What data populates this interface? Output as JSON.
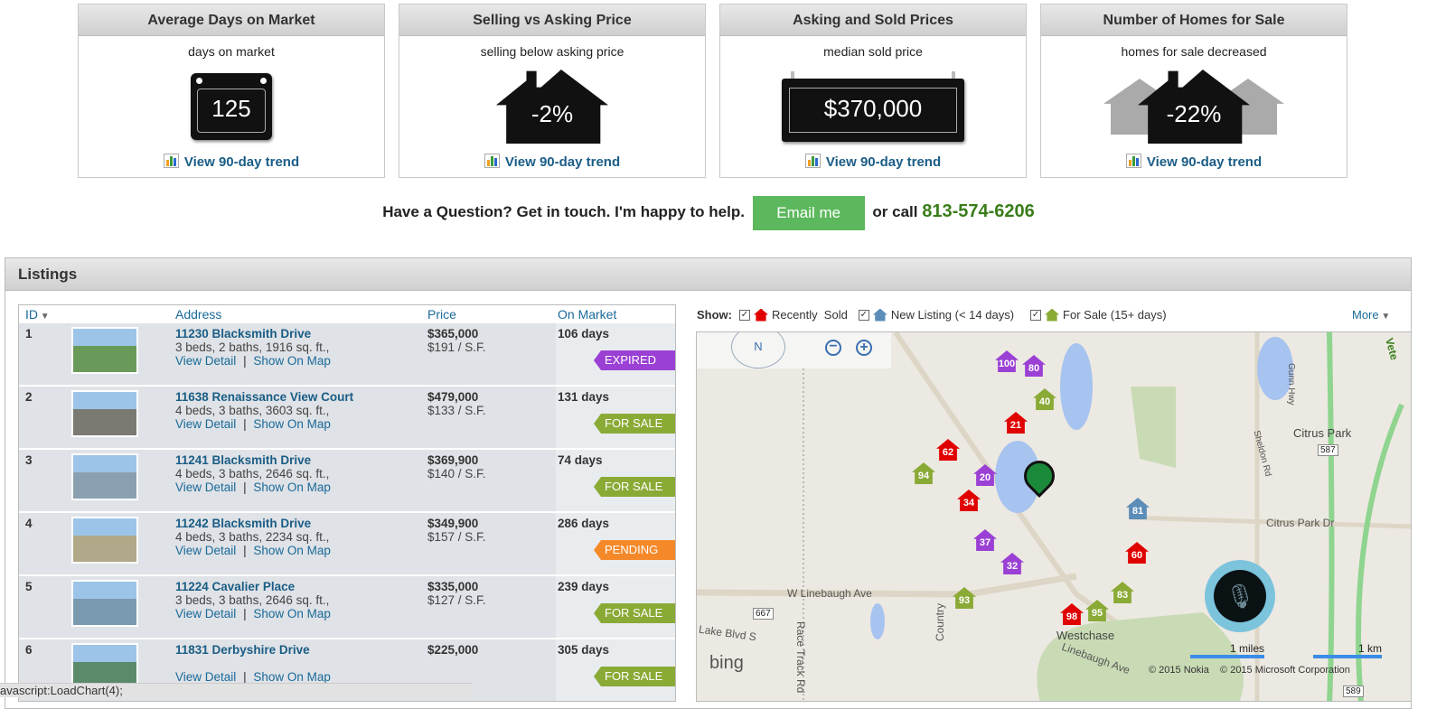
{
  "cards": [
    {
      "title": "Average Days on Market",
      "subtitle": "days on market",
      "value": "125",
      "icon": "calendar-icon",
      "link": "View 90-day trend"
    },
    {
      "title": "Selling vs Asking Price",
      "subtitle": "selling below asking price",
      "value": "-2%",
      "icon": "house-icon",
      "link": "View 90-day trend"
    },
    {
      "title": "Asking and Sold Prices",
      "subtitle": "median sold price",
      "value": "$370,000",
      "icon": "price-sign-icon",
      "link": "View 90-day trend"
    },
    {
      "title": "Number of Homes for Sale",
      "subtitle": "homes for sale decreased",
      "value": "-22%",
      "icon": "houses-icon",
      "link": "View 90-day trend"
    }
  ],
  "contact": {
    "question": "Have a Question? Get in touch. I'm happy to help.",
    "email_label": "Email me",
    "or_call": "or call",
    "phone": "813-574-6206"
  },
  "listings": {
    "title": "Listings",
    "columns": {
      "id": "ID",
      "address": "Address",
      "price": "Price",
      "on_market": "On Market"
    },
    "view_detail": "View Detail",
    "separator": "|",
    "show_on_map": "Show On Map",
    "rows": [
      {
        "id": "1",
        "address": "11230 Blacksmith Drive",
        "details": "3 beds, 2 baths, 1916 sq. ft.,",
        "price": "$365,000",
        "ppsf": "$191 / S.F.",
        "days": "106 days",
        "status": "EXPIRED",
        "status_color": "#9b40d4"
      },
      {
        "id": "2",
        "address": "11638 Renaissance View Court",
        "details": "4 beds, 3 baths, 3603 sq. ft.,",
        "price": "$479,000",
        "ppsf": "$133 / S.F.",
        "days": "131 days",
        "status": "FOR SALE",
        "status_color": "#8aaa36"
      },
      {
        "id": "3",
        "address": "11241 Blacksmith Drive",
        "details": "4 beds, 3 baths, 2646 sq. ft.,",
        "price": "$369,900",
        "ppsf": "$140 / S.F.",
        "days": "74 days",
        "status": "FOR SALE",
        "status_color": "#8aaa36"
      },
      {
        "id": "4",
        "address": "11242 Blacksmith Drive",
        "details": "4 beds, 3 baths, 2234 sq. ft.,",
        "price": "$349,900",
        "ppsf": "$157 / S.F.",
        "days": "286 days",
        "status": "PENDING",
        "status_color": "#f5892a"
      },
      {
        "id": "5",
        "address": "11224 Cavalier Place",
        "details": "3 beds, 3 baths, 2646 sq. ft.,",
        "price": "$335,000",
        "ppsf": "$127 / S.F.",
        "days": "239 days",
        "status": "FOR SALE",
        "status_color": "#8aaa36"
      },
      {
        "id": "6",
        "address": "11831 Derbyshire Drive",
        "details": "",
        "price": "$225,000",
        "ppsf": "",
        "days": "305 days",
        "status": "FOR SALE",
        "status_color": "#8aaa36"
      }
    ]
  },
  "map": {
    "show_label": "Show:",
    "filters": [
      {
        "label": "Recently  Sold",
        "color": "#e00000",
        "checked": true
      },
      {
        "label": "New Listing (< 14 days)",
        "color": "#5b8db8",
        "checked": true
      },
      {
        "label": "For Sale (15+ days)",
        "color": "#8aaa36",
        "checked": true
      }
    ],
    "more": "More",
    "compass": "N",
    "roads": [
      "W Linebaugh Ave",
      "Linebaugh Ave",
      "Citrus Park",
      "Citrus Park Dr",
      "Race Track Rd",
      "Lake Blvd S",
      "Gunn Hwy",
      "Sheldon Rd",
      "Country",
      "Westchase",
      "667",
      "587",
      "589",
      "Vete"
    ],
    "markers": [
      {
        "label": "100",
        "color": "#9b40d4"
      },
      {
        "label": "80",
        "color": "#9b40d4"
      },
      {
        "label": "40",
        "color": "#8aaa36"
      },
      {
        "label": "21",
        "color": "#e00000"
      },
      {
        "label": "62",
        "color": "#e00000"
      },
      {
        "label": "94",
        "color": "#8aaa36"
      },
      {
        "label": "20",
        "color": "#9b40d4"
      },
      {
        "label": "34",
        "color": "#e00000"
      },
      {
        "label": "37",
        "color": "#9b40d4"
      },
      {
        "label": "32",
        "color": "#9b40d4"
      },
      {
        "label": "93",
        "color": "#8aaa36"
      },
      {
        "label": "60",
        "color": "#e00000"
      },
      {
        "label": "83",
        "color": "#8aaa36"
      },
      {
        "label": "95",
        "color": "#8aaa36"
      },
      {
        "label": "98",
        "color": "#e00000"
      },
      {
        "label": "81",
        "color": "#5b8db8"
      }
    ],
    "scale_miles": "1 miles",
    "scale_km": "1 km",
    "bing": "bing",
    "copyright": "© 2015 Nokia    © 2015 Microsoft Corporation"
  },
  "status_bar": "avascript:LoadChart(4);"
}
